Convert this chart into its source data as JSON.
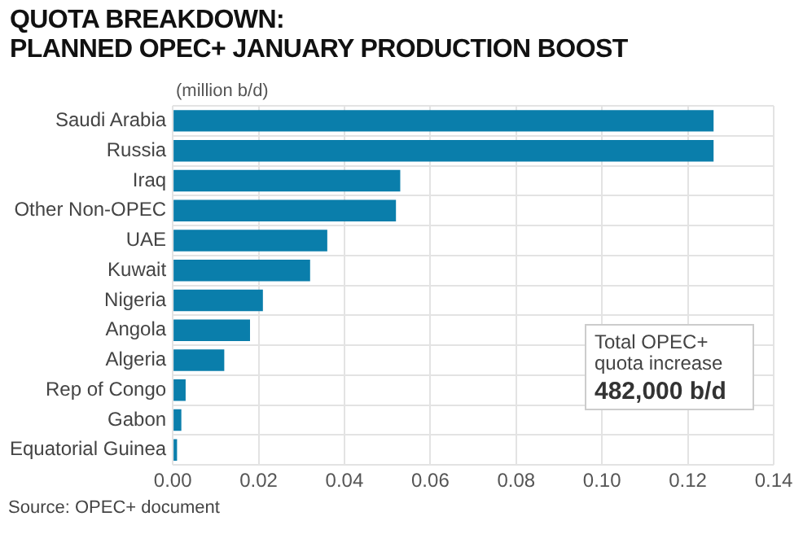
{
  "chart_data": {
    "type": "bar",
    "orientation": "horizontal",
    "title": "QUOTA BREAKDOWN:\nPLANNED OPEC+ JANUARY PRODUCTION BOOST",
    "subtitle": "(million b/d)",
    "categories": [
      "Saudi Arabia",
      "Russia",
      "Iraq",
      "Other Non-OPEC",
      "UAE",
      "Kuwait",
      "Nigeria",
      "Angola",
      "Algeria",
      "Rep of Congo",
      "Gabon",
      "Equatorial Guinea"
    ],
    "values": [
      0.126,
      0.126,
      0.053,
      0.052,
      0.036,
      0.032,
      0.021,
      0.018,
      0.012,
      0.003,
      0.002,
      0.001
    ],
    "color": "#0a7eab",
    "xlim": [
      0,
      0.14
    ],
    "xticks": [
      {
        "value": 0,
        "label": "0.00"
      },
      {
        "value": 0.02,
        "label": "0.02"
      },
      {
        "value": 0.04,
        "label": "0.04"
      },
      {
        "value": 0.06,
        "label": "0.06"
      },
      {
        "value": 0.08,
        "label": "0.08"
      },
      {
        "value": 0.1,
        "label": "0.10"
      },
      {
        "value": 0.12,
        "label": "0.12"
      },
      {
        "value": 0.14,
        "label": "0.14"
      }
    ],
    "grid": true,
    "annotations": [
      "Total OPEC+ quota increase",
      "482,000 b/d",
      "Source: OPEC+ document"
    ]
  }
}
